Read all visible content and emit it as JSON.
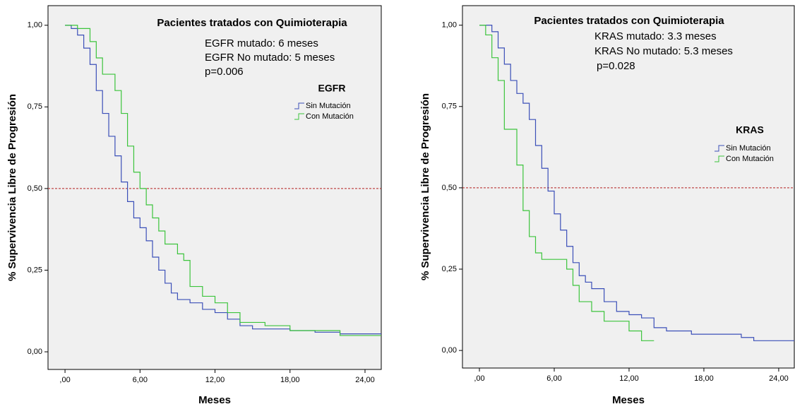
{
  "chart_data": [
    {
      "type": "step",
      "title": "Pacientes tratados con Quimioterapia",
      "annotations": [
        "EGFR mutado: 6 meses",
        "EGFR No mutado: 5 meses",
        "p=0.006"
      ],
      "x_label": "Meses",
      "y_label": "% Supervivencia Libre de Progresión",
      "legend_title": "EGFR",
      "legend": "upper right",
      "xlim": [
        -1.36,
        25.3
      ],
      "ylim": [
        -0.054,
        1.06
      ],
      "xticks": [
        {
          "value": 0,
          "label": ",00"
        },
        {
          "value": 6,
          "label": "6,00"
        },
        {
          "value": 12,
          "label": "12,00"
        },
        {
          "value": 18,
          "label": "18,00"
        },
        {
          "value": 24,
          "label": "24,00"
        }
      ],
      "yticks": [
        {
          "value": 0,
          "label": "0,00"
        },
        {
          "value": 0.25,
          "label": "0,25"
        },
        {
          "value": 0.5,
          "label": "0,50"
        },
        {
          "value": 0.75,
          "label": "0,75"
        },
        {
          "value": 1,
          "label": "1,00"
        }
      ],
      "hline": 0.5,
      "hline_color": "#b22222",
      "series": [
        {
          "name": "Sin Mutación",
          "color": "#3b4fb8",
          "x": [
            0,
            0.5,
            1,
            1.5,
            2,
            2.5,
            3,
            3.5,
            4,
            4.5,
            5,
            5.5,
            6,
            6.5,
            7,
            7.5,
            8,
            8.5,
            9,
            10,
            11,
            12,
            13,
            14,
            15,
            18,
            20,
            22,
            25.3
          ],
          "values": [
            1,
            0.99,
            0.97,
            0.93,
            0.88,
            0.8,
            0.73,
            0.66,
            0.6,
            0.52,
            0.46,
            0.41,
            0.38,
            0.34,
            0.29,
            0.25,
            0.21,
            0.18,
            0.16,
            0.15,
            0.13,
            0.12,
            0.1,
            0.08,
            0.07,
            0.065,
            0.06,
            0.055,
            0.055
          ]
        },
        {
          "name": "Con Mutación",
          "color": "#3cc43c",
          "x": [
            0,
            1,
            2,
            2.5,
            3,
            4,
            4.5,
            5,
            5.5,
            6,
            6.5,
            7,
            7.5,
            8,
            9,
            9.5,
            10,
            11,
            12,
            13,
            14,
            16,
            18,
            22,
            25.3
          ],
          "values": [
            1,
            0.99,
            0.95,
            0.9,
            0.85,
            0.8,
            0.73,
            0.63,
            0.55,
            0.5,
            0.45,
            0.41,
            0.37,
            0.33,
            0.3,
            0.28,
            0.2,
            0.17,
            0.15,
            0.12,
            0.09,
            0.08,
            0.065,
            0.05,
            0.05
          ]
        }
      ]
    },
    {
      "type": "step",
      "title": "Pacientes tratados con Quimioterapia",
      "annotations": [
        "KRAS mutado: 3.3 meses",
        "KRAS No mutado: 5.3 meses",
        "p=0.028"
      ],
      "x_label": "Meses",
      "y_label": "% Supervivencia Libre de Progresión",
      "legend_title": "KRAS",
      "legend": "right",
      "xlim": [
        -1.36,
        25.25
      ],
      "ylim": [
        -0.054,
        1.06
      ],
      "xticks": [
        {
          "value": 0,
          "label": ",00"
        },
        {
          "value": 6,
          "label": "6,00"
        },
        {
          "value": 12,
          "label": "12,00"
        },
        {
          "value": 18,
          "label": "18,00"
        },
        {
          "value": 24,
          "label": "24,00"
        }
      ],
      "yticks": [
        {
          "value": 0,
          "label": "0,00"
        },
        {
          "value": 0.25,
          "label": "0,25"
        },
        {
          "value": 0.5,
          "label": "0,50"
        },
        {
          "value": 0.75,
          "label": "0,75"
        },
        {
          "value": 1,
          "label": "1,00"
        }
      ],
      "hline": 0.5,
      "hline_color": "#b22222",
      "series": [
        {
          "name": "Sin Mutación",
          "color": "#3b4fb8",
          "x": [
            0,
            1,
            1.5,
            2,
            2.5,
            3,
            3.5,
            4,
            4.5,
            5,
            5.5,
            6,
            6.5,
            7,
            7.5,
            8,
            8.5,
            9,
            10,
            11,
            12,
            13,
            14,
            15,
            17,
            21,
            22,
            25.25
          ],
          "values": [
            1,
            0.98,
            0.93,
            0.88,
            0.83,
            0.79,
            0.76,
            0.71,
            0.63,
            0.56,
            0.49,
            0.42,
            0.37,
            0.32,
            0.27,
            0.23,
            0.21,
            0.19,
            0.15,
            0.12,
            0.11,
            0.1,
            0.07,
            0.06,
            0.05,
            0.04,
            0.03,
            0.03
          ]
        },
        {
          "name": "Con Mutación",
          "color": "#3cc43c",
          "x": [
            0,
            0.5,
            1,
            1.5,
            2,
            3,
            3.5,
            4,
            4.5,
            5,
            7,
            7.5,
            8,
            9,
            10,
            12,
            13,
            14
          ],
          "values": [
            1,
            0.97,
            0.9,
            0.83,
            0.68,
            0.57,
            0.43,
            0.35,
            0.3,
            0.28,
            0.25,
            0.2,
            0.15,
            0.12,
            0.09,
            0.06,
            0.03,
            0.03
          ]
        }
      ]
    }
  ]
}
